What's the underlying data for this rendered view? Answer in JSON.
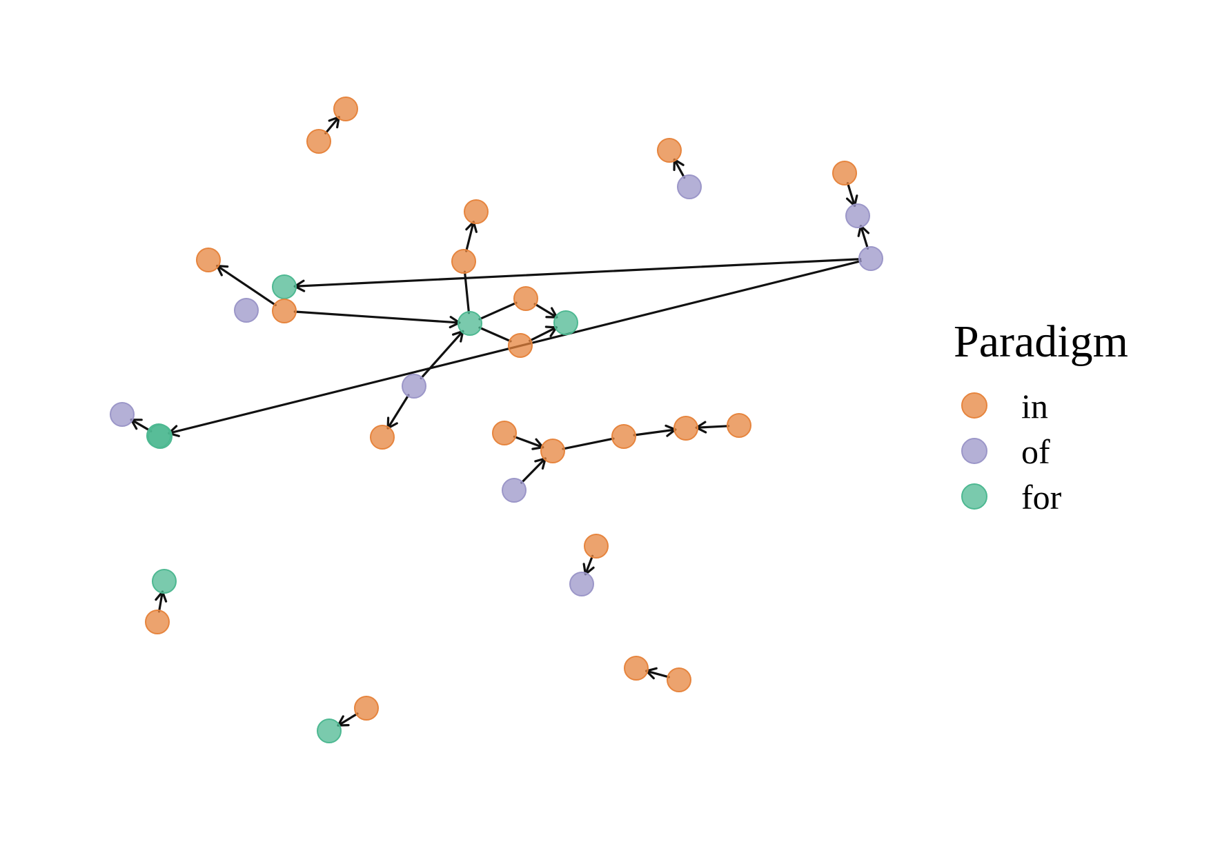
{
  "legend": {
    "title": "Paradigm",
    "items": [
      {
        "label": "in",
        "color": "#E6843D"
      },
      {
        "label": "of",
        "color": "#9B96C8"
      },
      {
        "label": "for",
        "color": "#4DB891"
      }
    ]
  },
  "graph": {
    "node_fill_opacity": 0.75,
    "edge_color": "#111111",
    "nodes": [
      {
        "id": "n1",
        "paradigm": "in"
      },
      {
        "id": "n2",
        "paradigm": "in"
      },
      {
        "id": "n3",
        "paradigm": "in"
      },
      {
        "id": "n4",
        "paradigm": "of"
      },
      {
        "id": "n5",
        "paradigm": "in"
      },
      {
        "id": "n6",
        "paradigm": "of"
      },
      {
        "id": "n7",
        "paradigm": "of"
      },
      {
        "id": "n8",
        "paradigm": "for"
      },
      {
        "id": "n9",
        "paradigm": "of"
      },
      {
        "id": "n10",
        "paradigm": "for"
      },
      {
        "id": "n11",
        "paradigm": "in"
      },
      {
        "id": "n12",
        "paradigm": "in"
      },
      {
        "id": "n13",
        "paradigm": "for"
      },
      {
        "id": "n14",
        "paradigm": "in"
      },
      {
        "id": "n15",
        "paradigm": "in"
      },
      {
        "id": "n16",
        "paradigm": "for"
      },
      {
        "id": "n17",
        "paradigm": "of"
      },
      {
        "id": "n18",
        "paradigm": "in"
      },
      {
        "id": "n19",
        "paradigm": "of"
      },
      {
        "id": "n20",
        "paradigm": "for"
      },
      {
        "id": "n21",
        "paradigm": "in"
      },
      {
        "id": "n22",
        "paradigm": "in"
      },
      {
        "id": "n23",
        "paradigm": "of"
      },
      {
        "id": "n24",
        "paradigm": "in"
      },
      {
        "id": "n25",
        "paradigm": "in"
      },
      {
        "id": "n26",
        "paradigm": "in"
      },
      {
        "id": "n27",
        "paradigm": "in"
      },
      {
        "id": "n28",
        "paradigm": "for"
      },
      {
        "id": "n29",
        "paradigm": "for"
      },
      {
        "id": "n30",
        "paradigm": "in"
      },
      {
        "id": "n31",
        "paradigm": "in"
      },
      {
        "id": "n32",
        "paradigm": "in"
      },
      {
        "id": "n33",
        "paradigm": "of"
      },
      {
        "id": "n34",
        "paradigm": "in"
      },
      {
        "id": "n35",
        "paradigm": "in"
      }
    ],
    "edges": [
      {
        "from": "n1",
        "to": "n2",
        "arrow": true
      },
      {
        "from": "n4",
        "to": "n3",
        "arrow": true
      },
      {
        "from": "n5",
        "to": "n6",
        "arrow": true
      },
      {
        "from": "n7",
        "to": "n6",
        "arrow": true
      },
      {
        "from": "n7",
        "to": "n8",
        "arrow": true
      },
      {
        "from": "n7",
        "to": "n10",
        "arrow": true
      },
      {
        "from": "n12",
        "to": "n11",
        "arrow": true
      },
      {
        "from": "n12",
        "to": "n13",
        "arrow": true
      },
      {
        "from": "n13",
        "to": "n14",
        "arrow": false
      },
      {
        "from": "n14",
        "to": "n16",
        "arrow": true
      },
      {
        "from": "n13",
        "to": "n15",
        "arrow": false
      },
      {
        "from": "n15",
        "to": "n16",
        "arrow": true
      },
      {
        "from": "n17",
        "to": "n13",
        "arrow": true
      },
      {
        "from": "n17",
        "to": "n18",
        "arrow": true
      },
      {
        "from": "n20",
        "to": "n19",
        "arrow": true
      },
      {
        "from": "n21",
        "to": "n22",
        "arrow": true
      },
      {
        "from": "n23",
        "to": "n22",
        "arrow": true
      },
      {
        "from": "n22",
        "to": "n24",
        "arrow": false
      },
      {
        "from": "n24",
        "to": "n25",
        "arrow": true
      },
      {
        "from": "n26",
        "to": "n25",
        "arrow": true
      },
      {
        "from": "n27",
        "to": "n28",
        "arrow": true
      },
      {
        "from": "n30",
        "to": "n29",
        "arrow": true
      },
      {
        "from": "n32",
        "to": "n31",
        "arrow": true
      },
      {
        "from": "n34",
        "to": "n33",
        "arrow": true
      },
      {
        "from": "n35",
        "to": "n13",
        "arrow": true
      }
    ]
  }
}
